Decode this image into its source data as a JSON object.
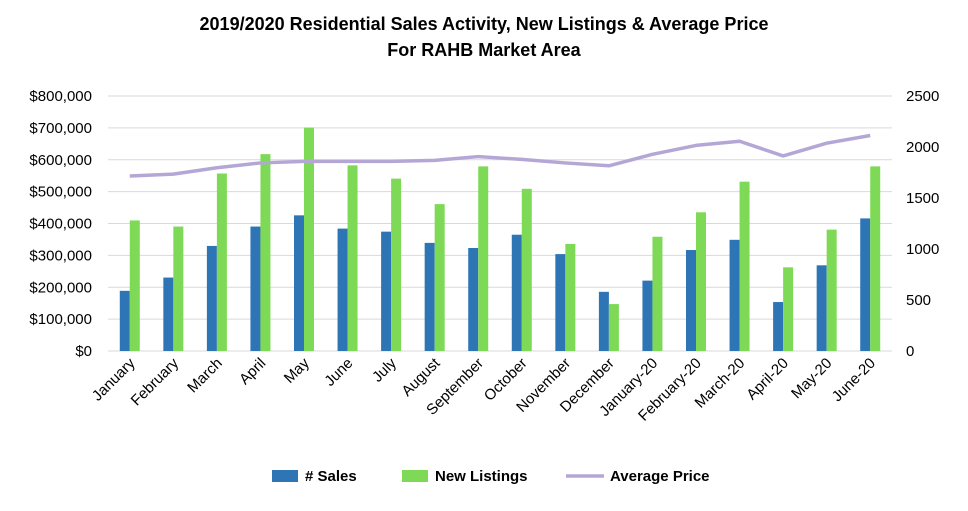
{
  "chart_data": {
    "type": "bar",
    "title": "2019/2020 Residential Sales Activity, New Listings & Average Price",
    "subtitle": "For RAHB Market Area",
    "categories": [
      "January",
      "February",
      "March",
      "April",
      "May",
      "June",
      "July",
      "August",
      "September",
      "October",
      "November",
      "December",
      "January-20",
      "February-20",
      "March-20",
      "April-20",
      "May-20",
      "June-20"
    ],
    "series": [
      {
        "name": "# Sales",
        "type": "bar",
        "axis": "right",
        "color": "#2E75B6",
        "values": [
          590,
          720,
          1030,
          1220,
          1330,
          1200,
          1170,
          1060,
          1010,
          1140,
          950,
          580,
          690,
          990,
          1090,
          480,
          840,
          1300
        ]
      },
      {
        "name": "New Listings",
        "type": "bar",
        "axis": "right",
        "color": "#7ED957",
        "values": [
          1280,
          1220,
          1740,
          1930,
          2190,
          1820,
          1690,
          1440,
          1810,
          1590,
          1050,
          460,
          1120,
          1360,
          1660,
          820,
          1190,
          1810
        ]
      },
      {
        "name": "Average Price",
        "type": "line",
        "axis": "left",
        "color": "#B4A7D6",
        "values": [
          549000,
          555000,
          575000,
          590000,
          595000,
          595000,
          595000,
          598000,
          610000,
          601000,
          590000,
          581000,
          617000,
          645000,
          658000,
          612000,
          652000,
          676000
        ]
      }
    ],
    "y_left": {
      "min": 0,
      "max": 800000,
      "ticks": [
        "$0",
        "$100,000",
        "$200,000",
        "$300,000",
        "$400,000",
        "$500,000",
        "$600,000",
        "$700,000",
        "$800,000"
      ]
    },
    "y_right": {
      "min": 0,
      "max": 2500,
      "ticks": [
        "0",
        "500",
        "1000",
        "1500",
        "2000",
        "2500"
      ]
    },
    "grid": true,
    "legend": "bottom"
  }
}
